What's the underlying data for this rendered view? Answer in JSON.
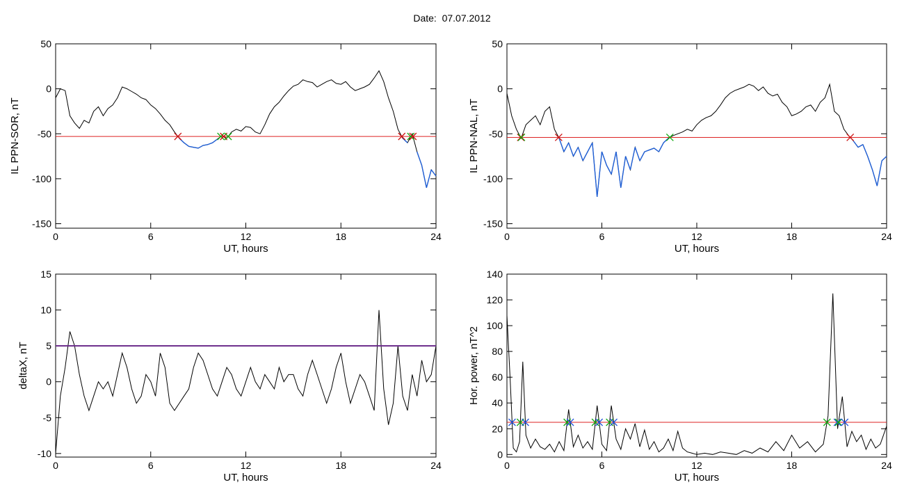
{
  "header": {
    "date_label": "Date:",
    "date_value": "07.07.2012"
  },
  "colors": {
    "trace": "#000000",
    "below_threshold": "#1f5fd6",
    "threshold_red": "#dd2222",
    "threshold_purple": "#6a2a8a",
    "marker_red": "#cc1111",
    "marker_green": "#11aa11",
    "marker_blue": "#2255dd"
  },
  "chart_data": [
    {
      "type": "line",
      "xlabel": "UT, hours",
      "ylabel": "IL PPN-SOR, nT",
      "xlim": [
        0,
        24
      ],
      "ylim": [
        -155,
        50
      ],
      "xticks": [
        0,
        6,
        12,
        18,
        24
      ],
      "yticks": [
        -150,
        -100,
        -50,
        0,
        50
      ],
      "threshold": {
        "value": -53,
        "color": "red"
      },
      "series": [
        {
          "x": [
            0,
            0.3,
            0.6,
            0.9,
            1.2,
            1.5,
            1.8,
            2.1,
            2.4,
            2.7,
            3.0,
            3.3,
            3.6,
            3.9,
            4.2,
            4.5,
            4.8,
            5.1,
            5.4,
            5.7,
            6.0,
            6.3,
            6.6,
            6.9,
            7.2,
            7.5,
            7.8,
            8.1,
            8.4,
            8.7,
            9.0,
            9.3,
            9.6,
            9.9,
            10.2,
            10.5,
            10.8,
            11.1,
            11.4,
            11.7,
            12.0,
            12.3,
            12.6,
            12.9,
            13.2,
            13.5,
            13.8,
            14.1,
            14.4,
            14.7,
            15.0,
            15.3,
            15.6,
            15.9,
            16.2,
            16.5,
            16.8,
            17.1,
            17.4,
            17.7,
            18.0,
            18.3,
            18.6,
            18.9,
            19.2,
            19.5,
            19.8,
            20.1,
            20.4,
            20.7,
            21.0,
            21.3,
            21.6,
            21.9,
            22.2,
            22.5,
            22.8,
            23.1,
            23.4,
            23.7,
            24.0
          ],
          "y": [
            -10,
            0,
            -2,
            -30,
            -38,
            -44,
            -35,
            -38,
            -25,
            -20,
            -30,
            -22,
            -18,
            -10,
            2,
            0,
            -3,
            -6,
            -10,
            -12,
            -18,
            -22,
            -28,
            -35,
            -40,
            -48,
            -55,
            -60,
            -64,
            -65,
            -66,
            -63,
            -62,
            -60,
            -56,
            -52,
            -55,
            -48,
            -45,
            -47,
            -42,
            -43,
            -48,
            -50,
            -40,
            -28,
            -20,
            -15,
            -8,
            -2,
            3,
            5,
            10,
            8,
            7,
            2,
            5,
            8,
            10,
            6,
            5,
            8,
            2,
            -2,
            0,
            2,
            5,
            12,
            20,
            8,
            -10,
            -25,
            -45,
            -55,
            -60,
            -50,
            -70,
            -85,
            -110,
            -90,
            -97
          ]
        }
      ]
    },
    {
      "type": "line",
      "xlabel": "UT, hours",
      "ylabel": "IL PPN-NAL, nT",
      "xlim": [
        0,
        24
      ],
      "ylim": [
        -155,
        50
      ],
      "xticks": [
        0,
        6,
        12,
        18,
        24
      ],
      "yticks": [
        -150,
        -100,
        -50,
        0,
        50
      ],
      "threshold": {
        "value": -54,
        "color": "red"
      },
      "series": [
        {
          "x": [
            0,
            0.3,
            0.6,
            0.9,
            1.2,
            1.5,
            1.8,
            2.1,
            2.4,
            2.7,
            3.0,
            3.3,
            3.6,
            3.9,
            4.2,
            4.5,
            4.8,
            5.1,
            5.4,
            5.7,
            6.0,
            6.3,
            6.6,
            6.9,
            7.2,
            7.5,
            7.8,
            8.1,
            8.4,
            8.7,
            9.0,
            9.3,
            9.6,
            9.9,
            10.2,
            10.5,
            10.8,
            11.1,
            11.4,
            11.7,
            12.0,
            12.3,
            12.6,
            12.9,
            13.2,
            13.5,
            13.8,
            14.1,
            14.4,
            14.7,
            15.0,
            15.3,
            15.6,
            15.9,
            16.2,
            16.5,
            16.8,
            17.1,
            17.4,
            17.7,
            18.0,
            18.3,
            18.6,
            18.9,
            19.2,
            19.5,
            19.8,
            20.1,
            20.4,
            20.7,
            21.0,
            21.3,
            21.6,
            21.9,
            22.2,
            22.5,
            22.8,
            23.1,
            23.4,
            23.7,
            24.0
          ],
          "y": [
            -5,
            -30,
            -45,
            -55,
            -40,
            -35,
            -30,
            -40,
            -25,
            -20,
            -45,
            -55,
            -70,
            -60,
            -75,
            -65,
            -80,
            -70,
            -60,
            -120,
            -70,
            -85,
            -95,
            -70,
            -110,
            -75,
            -90,
            -65,
            -80,
            -70,
            -68,
            -66,
            -70,
            -60,
            -55,
            -52,
            -50,
            -48,
            -45,
            -47,
            -40,
            -35,
            -32,
            -30,
            -25,
            -18,
            -10,
            -5,
            -2,
            0,
            2,
            5,
            3,
            -2,
            2,
            -5,
            -8,
            -6,
            -15,
            -20,
            -30,
            -28,
            -25,
            -20,
            -18,
            -25,
            -15,
            -10,
            5,
            -25,
            -30,
            -45,
            -52,
            -58,
            -65,
            -62,
            -75,
            -90,
            -108,
            -80,
            -75
          ]
        }
      ]
    },
    {
      "type": "line",
      "xlabel": "UT, hours",
      "ylabel": "deltaX, nT",
      "xlim": [
        0,
        24
      ],
      "ylim": [
        -10.5,
        15
      ],
      "xticks": [
        0,
        6,
        12,
        18,
        24
      ],
      "yticks": [
        -10,
        -5,
        0,
        5,
        10,
        15
      ],
      "threshold": {
        "value": 5,
        "color": "purple"
      },
      "series": [
        {
          "x": [
            0,
            0.3,
            0.6,
            0.9,
            1.2,
            1.5,
            1.8,
            2.1,
            2.4,
            2.7,
            3.0,
            3.3,
            3.6,
            3.9,
            4.2,
            4.5,
            4.8,
            5.1,
            5.4,
            5.7,
            6.0,
            6.3,
            6.6,
            6.9,
            7.2,
            7.5,
            7.8,
            8.1,
            8.4,
            8.7,
            9.0,
            9.3,
            9.6,
            9.9,
            10.2,
            10.5,
            10.8,
            11.1,
            11.4,
            11.7,
            12.0,
            12.3,
            12.6,
            12.9,
            13.2,
            13.5,
            13.8,
            14.1,
            14.4,
            14.7,
            15.0,
            15.3,
            15.6,
            15.9,
            16.2,
            16.5,
            16.8,
            17.1,
            17.4,
            17.7,
            18.0,
            18.3,
            18.6,
            18.9,
            19.2,
            19.5,
            19.8,
            20.1,
            20.4,
            20.7,
            21.0,
            21.3,
            21.6,
            21.9,
            22.2,
            22.5,
            22.8,
            23.1,
            23.4,
            23.7,
            24.0
          ],
          "y": [
            -10,
            -2,
            2,
            7,
            5,
            1,
            -2,
            -4,
            -2,
            0,
            -1,
            0,
            -2,
            1,
            4,
            2,
            -1,
            -3,
            -2,
            1,
            0,
            -2,
            4,
            2,
            -3,
            -4,
            -3,
            -2,
            -1,
            2,
            4,
            3,
            1,
            -1,
            -2,
            0,
            2,
            1,
            -1,
            -2,
            0,
            2,
            0,
            -1,
            1,
            0,
            -1,
            2,
            0,
            1,
            1,
            -1,
            -2,
            1,
            3,
            1,
            -1,
            -3,
            -1,
            2,
            4,
            0,
            -3,
            -1,
            1,
            0,
            -2,
            -4,
            10,
            -1,
            -6,
            -3,
            5,
            -2,
            -4,
            1,
            -2,
            3,
            0,
            1,
            5
          ]
        }
      ]
    },
    {
      "type": "line",
      "xlabel": "UT, hours",
      "ylabel": "Hor. power, nT^2",
      "xlim": [
        0,
        24
      ],
      "ylim": [
        -2,
        140
      ],
      "xticks": [
        0,
        6,
        12,
        18,
        24
      ],
      "yticks": [
        0,
        20,
        40,
        60,
        80,
        100,
        120,
        140
      ],
      "threshold": {
        "value": 25,
        "color": "red"
      },
      "series": [
        {
          "x": [
            0,
            0.2,
            0.4,
            0.6,
            0.8,
            1.0,
            1.2,
            1.5,
            1.8,
            2.1,
            2.4,
            2.7,
            3.0,
            3.3,
            3.6,
            3.9,
            4.2,
            4.5,
            4.8,
            5.1,
            5.4,
            5.7,
            6.0,
            6.3,
            6.6,
            6.9,
            7.2,
            7.5,
            7.8,
            8.1,
            8.4,
            8.7,
            9.0,
            9.3,
            9.6,
            9.9,
            10.2,
            10.5,
            10.8,
            11.1,
            11.4,
            11.7,
            12.0,
            12.5,
            13.0,
            13.5,
            14.0,
            14.5,
            15.0,
            15.5,
            16.0,
            16.5,
            17.0,
            17.5,
            18.0,
            18.5,
            19.0,
            19.5,
            20.0,
            20.3,
            20.6,
            20.9,
            21.2,
            21.5,
            21.8,
            22.1,
            22.4,
            22.7,
            23.0,
            23.3,
            23.6,
            24.0
          ],
          "y": [
            108,
            60,
            5,
            2,
            10,
            72,
            15,
            5,
            12,
            6,
            4,
            8,
            2,
            10,
            3,
            35,
            6,
            15,
            5,
            10,
            4,
            38,
            8,
            3,
            38,
            12,
            4,
            20,
            12,
            24,
            6,
            19,
            4,
            10,
            2,
            5,
            12,
            3,
            18,
            5,
            2,
            1,
            0,
            1,
            0,
            2,
            1,
            0,
            3,
            1,
            5,
            2,
            10,
            3,
            15,
            5,
            10,
            2,
            8,
            30,
            125,
            20,
            45,
            6,
            18,
            10,
            15,
            4,
            12,
            5,
            8,
            22
          ]
        }
      ]
    }
  ]
}
